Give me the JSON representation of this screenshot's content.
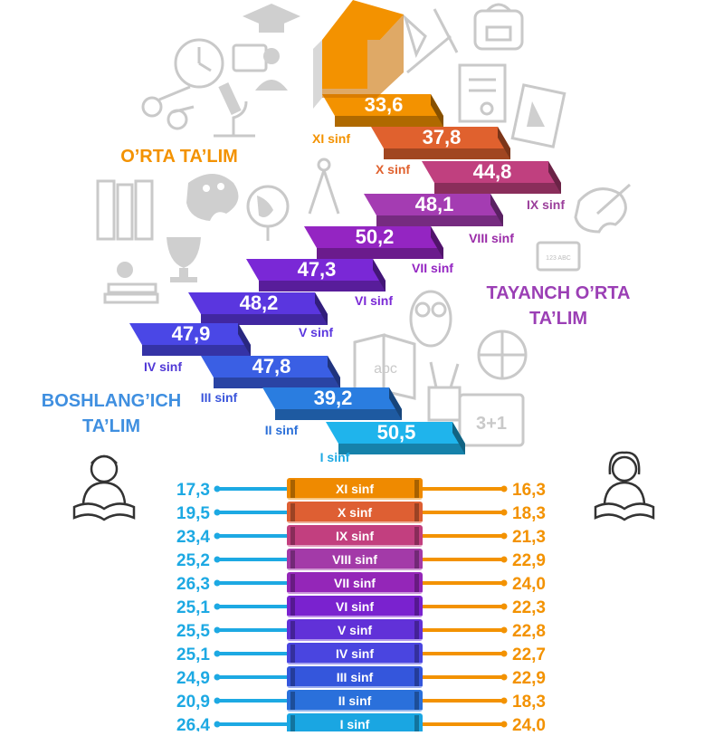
{
  "colors": {
    "orange": "#f39200",
    "blue": "#1da9e3",
    "purple": "#9b3fb5",
    "section_blue": "#3f8fe0",
    "decor_gray": "#c9c9c9"
  },
  "icons": [
    "arrow-up-icon",
    "clock-icon",
    "teacher-icon",
    "scissors-icon",
    "microscope-icon",
    "graduation-cap-icon",
    "drawing-tools-icon",
    "schoolbag-icon",
    "certificate-icon",
    "notebook-icon",
    "compass-icon",
    "palette-icon",
    "globe-icon",
    "books-icon",
    "trophy-icon",
    "apple-books-icon",
    "owl-icon",
    "abc-book-icon",
    "pencil-cup-icon",
    "basketball-icon",
    "chalkboard-icon",
    "boy-reading-icon",
    "girl-reading-icon"
  ],
  "sections": {
    "orta_talim": "O’RTA TA’LIM",
    "tayanch_line1": "TAYANCH O’RTA",
    "tayanch_line2": "TA’LIM",
    "boshlang_line1": "BOSHLANG’ICH",
    "boshlang_line2": "TA’LIM"
  },
  "chalkboard_text": "3+1",
  "small_board_text": "123 ABC",
  "abc_text": "abc",
  "stairs": [
    {
      "grade": "I sinf",
      "value": "50,5",
      "color": "#1fb4ec"
    },
    {
      "grade": "II sinf",
      "value": "39,2",
      "color": "#2a7de0"
    },
    {
      "grade": "III sinf",
      "value": "47,8",
      "color": "#3a5fe4"
    },
    {
      "grade": "IV sinf",
      "value": "47,9",
      "color": "#4a47e6"
    },
    {
      "grade": "V sinf",
      "value": "48,2",
      "color": "#5a36df"
    },
    {
      "grade": "VI sinf",
      "value": "47,3",
      "color": "#7a28d6"
    },
    {
      "grade": "VII sinf",
      "value": "50,2",
      "color": "#9425c2"
    },
    {
      "grade": "VIII sinf",
      "value": "48,1",
      "color": "#a43cb2"
    },
    {
      "grade": "IX sinf",
      "value": "44,8",
      "color": "#c0407f"
    },
    {
      "grade": "X sinf",
      "value": "37,8",
      "color": "#e0612e"
    },
    {
      "grade": "XI sinf",
      "value": "33,6",
      "color": "#f39200"
    }
  ],
  "books": [
    {
      "grade": "XI sinf",
      "left": "17,3",
      "right": "16,3",
      "color": "#ef8a00"
    },
    {
      "grade": "X sinf",
      "left": "19,5",
      "right": "18,3",
      "color": "#de5f33"
    },
    {
      "grade": "IX sinf",
      "left": "23,4",
      "right": "21,3",
      "color": "#c23f7f"
    },
    {
      "grade": "VIII sinf",
      "left": "25,2",
      "right": "22,9",
      "color": "#a33aa8"
    },
    {
      "grade": "VII sinf",
      "left": "26,3",
      "right": "24,0",
      "color": "#9426b8"
    },
    {
      "grade": "VI sinf",
      "left": "25,1",
      "right": "22,3",
      "color": "#7a22cf"
    },
    {
      "grade": "V sinf",
      "left": "25,5",
      "right": "22,8",
      "color": "#6131d8"
    },
    {
      "grade": "IV sinf",
      "left": "25,1",
      "right": "22,7",
      "color": "#4a45e0"
    },
    {
      "grade": "III sinf",
      "left": "24,9",
      "right": "22,9",
      "color": "#3456dc"
    },
    {
      "grade": "II sinf",
      "left": "20,9",
      "right": "18,3",
      "color": "#2a70db"
    },
    {
      "grade": "I sinf",
      "left": "26,4",
      "right": "24,0",
      "color": "#1aa6e2"
    }
  ]
}
